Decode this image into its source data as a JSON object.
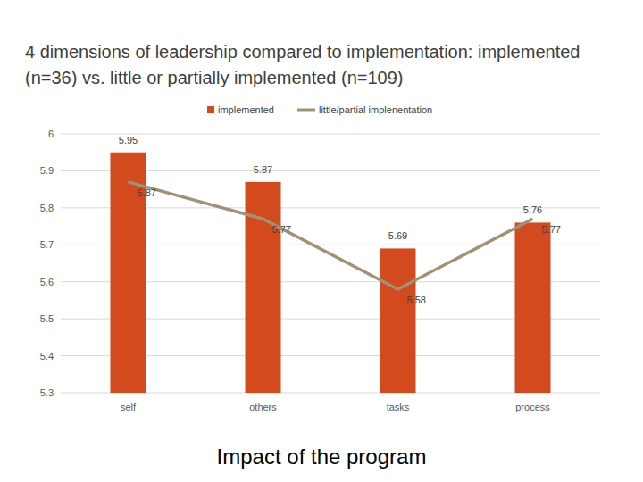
{
  "chart_data": {
    "type": "bar",
    "title": "4 dimensions of leadership compared to implementation: implemented (n=36) vs. little or partially implemented (n=109)",
    "x_label": "Impact of the program",
    "categories": [
      "self",
      "others",
      "tasks",
      "process"
    ],
    "series": [
      {
        "name": "implemented",
        "type": "bar",
        "color": "#d24a1e",
        "values": [
          5.95,
          5.87,
          5.69,
          5.76
        ]
      },
      {
        "name": "little/partial implenentation",
        "type": "line",
        "color": "#a09274",
        "values": [
          5.87,
          5.77,
          5.58,
          5.77
        ]
      }
    ],
    "ylim": [
      5.3,
      6
    ],
    "yticks": [
      5.3,
      5.4,
      5.5,
      5.6,
      5.7,
      5.8,
      5.9,
      6
    ],
    "grid": true,
    "legend": "top",
    "data_labels": true
  }
}
